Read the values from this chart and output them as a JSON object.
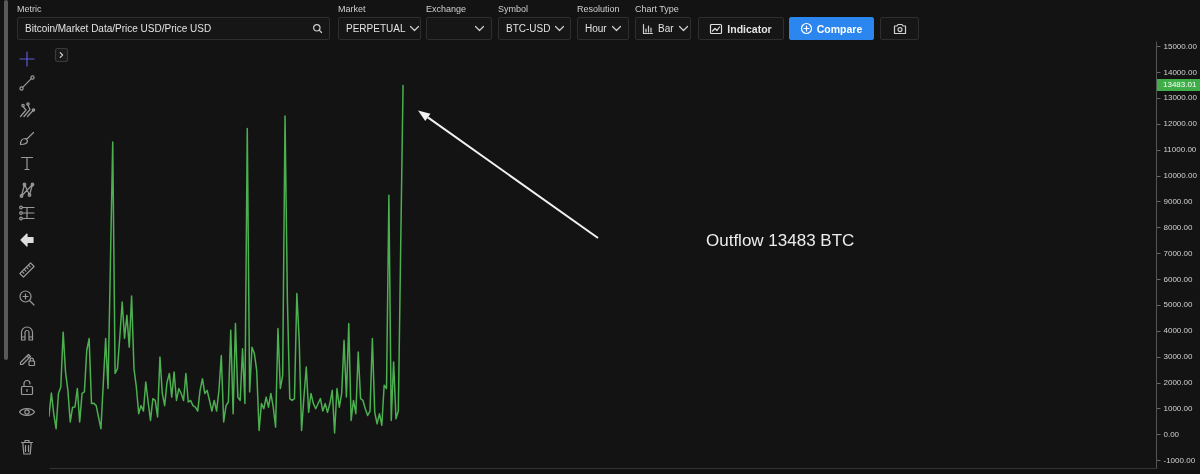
{
  "chart_data": {
    "type": "line",
    "color": "#4caf50",
    "tick_labels": "y",
    "ylim": [
      -1300,
      15200
    ],
    "yticks": [
      {
        "value": -1000,
        "label": "-1000.00"
      },
      {
        "value": 0,
        "label": "0.00"
      },
      {
        "value": 1000,
        "label": "1000.00"
      },
      {
        "value": 2000,
        "label": "2000.00"
      },
      {
        "value": 3000,
        "label": "3000.00"
      },
      {
        "value": 4000,
        "label": "4000.00"
      },
      {
        "value": 5000,
        "label": "5000.00"
      },
      {
        "value": 6000,
        "label": "6000.00"
      },
      {
        "value": 7000,
        "label": "7000.00"
      },
      {
        "value": 8000,
        "label": "8000.00"
      },
      {
        "value": 9000,
        "label": "9000.00"
      },
      {
        "value": 10000,
        "label": "10000.00"
      },
      {
        "value": 11000,
        "label": "11000.00"
      },
      {
        "value": 12000,
        "label": "12000.00"
      },
      {
        "value": 13000,
        "label": "13000.00"
      },
      {
        "value": 14000,
        "label": "14000.00"
      },
      {
        "value": 15000,
        "label": "15000.00"
      }
    ],
    "annotations": [
      "Outflow 13483 BTC",
      "13483.01",
      "Metric",
      "Bitcoin/Market Data/Price USD/Price USD",
      "Market",
      "PERPETUAL",
      "Exchange",
      "Symbol",
      "BTC-USD",
      "Resolution",
      "Hour",
      "Chart Type",
      "Bar",
      "Indicator",
      "Compare"
    ],
    "categories": [
      null,
      null,
      null,
      null,
      null,
      null,
      null,
      null,
      null,
      null,
      null,
      null,
      null,
      null,
      null,
      null,
      null,
      null,
      null,
      null,
      null,
      null,
      null,
      null,
      null,
      null,
      null,
      null,
      null,
      null,
      null,
      null,
      null,
      null,
      null,
      null,
      null,
      null,
      null,
      null,
      null,
      null,
      null,
      null,
      null,
      null,
      null,
      null,
      null,
      null,
      null,
      null,
      null,
      null,
      null,
      null,
      null,
      null,
      null,
      null,
      null,
      null,
      null,
      null,
      null,
      null,
      null,
      null,
      null,
      null,
      null,
      null,
      null,
      null,
      null,
      null,
      null,
      null,
      null,
      null,
      null,
      null,
      null,
      null,
      null,
      null,
      null,
      null,
      null,
      null,
      null,
      null,
      null,
      null,
      null,
      null,
      null,
      null,
      null,
      null,
      null,
      null,
      null,
      null,
      null,
      null,
      null,
      null,
      null,
      null,
      null,
      null,
      null,
      null,
      null,
      null,
      null,
      null,
      null,
      null,
      null,
      null,
      null,
      null,
      null,
      null,
      null,
      null,
      null,
      null,
      null,
      null,
      null,
      null,
      null,
      null,
      null,
      null,
      null,
      null,
      null,
      null,
      null,
      null,
      null,
      null,
      null,
      null,
      null,
      null,
      null,
      null,
      null,
      null,
      null,
      null,
      null,
      null,
      null,
      null,
      null,
      null,
      null,
      null,
      null,
      null,
      null,
      null,
      null,
      null,
      null,
      null,
      null,
      null,
      null,
      null,
      null,
      null,
      null,
      null,
      null,
      null,
      null,
      null,
      null,
      null,
      null,
      null,
      null,
      null,
      null,
      null,
      null,
      null,
      null,
      null,
      null,
      null,
      null,
      null,
      null,
      null,
      null,
      null,
      null,
      null,
      null,
      null,
      null,
      null,
      null,
      null,
      null,
      null,
      null,
      null,
      null,
      null,
      null,
      null,
      null,
      null,
      null,
      null,
      null,
      null,
      null,
      null,
      null,
      null,
      null,
      null,
      null,
      null,
      null,
      null,
      null,
      null,
      null,
      null,
      null,
      null,
      null,
      null,
      null,
      null,
      null,
      null,
      null,
      null,
      null,
      null,
      null,
      null,
      null,
      null,
      null,
      null,
      null,
      null,
      null,
      null,
      null,
      null,
      null,
      null,
      null,
      null,
      null,
      null,
      null,
      null,
      null,
      null,
      null,
      null,
      null,
      null,
      null,
      null,
      null,
      null,
      null,
      null,
      null,
      null,
      null,
      null,
      null,
      null,
      null,
      null,
      null,
      null,
      null,
      null,
      null,
      null,
      null,
      null,
      null,
      null,
      null,
      null,
      null,
      null,
      null,
      null,
      null,
      null,
      null,
      null,
      null,
      null,
      null,
      null,
      null,
      null,
      null,
      null,
      null,
      null,
      null,
      null,
      null,
      null,
      null,
      null,
      null,
      null,
      null,
      null,
      null,
      null,
      null,
      null,
      null,
      null,
      null,
      null,
      null,
      null,
      null,
      null,
      null,
      null,
      null,
      null,
      null,
      null,
      null,
      null,
      null,
      null,
      null,
      null,
      null,
      null,
      null,
      null,
      null,
      null,
      null,
      null,
      null,
      null,
      null,
      null,
      null,
      null,
      null,
      null,
      null,
      null,
      null,
      null,
      null,
      null,
      null,
      null,
      null,
      null,
      null,
      null,
      null,
      null,
      null,
      null,
      null,
      null,
      null,
      null,
      null,
      null,
      null,
      null,
      null,
      null,
      null,
      null,
      null,
      null,
      null,
      null,
      null,
      null,
      null,
      null,
      null,
      null,
      null,
      null,
      null,
      null,
      null,
      null,
      null,
      null,
      null,
      null,
      null,
      null,
      null,
      null,
      null,
      null,
      null,
      null,
      null,
      null,
      null,
      null,
      null,
      null,
      null,
      null,
      null,
      null,
      null,
      null,
      null,
      null,
      null,
      null,
      null,
      null,
      null,
      null,
      null,
      null,
      null,
      null,
      null,
      null,
      null,
      null,
      null,
      null,
      null,
      null,
      null,
      null,
      null,
      null,
      null,
      null,
      null,
      null,
      null,
      null
    ],
    "values": [
      700,
      1600,
      800,
      220,
      1580,
      1830,
      3950,
      2410,
      1700,
      480,
      1050,
      1060,
      1770,
      480,
      1580,
      1640,
      3250,
      3700,
      1190,
      1200,
      1110,
      660,
      220,
      1960,
      3700,
      1770,
      6520,
      11300,
      2350,
      2540,
      3760,
      5110,
      3710,
      4600,
      3370,
      5350,
      2540,
      1830,
      800,
      1110,
      900,
      2020,
      1250,
      540,
      1380,
      1310,
      670,
      2990,
      1580,
      1110,
      2020,
      2350,
      1440,
      2410,
      1310,
      1770,
      1580,
      1310,
      2350,
      1250,
      1310,
      1110,
      1050,
      900,
      1700,
      2150,
      1580,
      1700,
      1310,
      900,
      1310,
      900,
      1700,
      3050,
      480,
      1110,
      1250,
      4020,
      800,
      4280,
      1440,
      1310,
      3310,
      1190,
      11820,
      1640,
      3370,
      3120,
      2470,
      150,
      1190,
      990,
      1440,
      1050,
      1580,
      1050,
      280,
      4090,
      1770,
      2280,
      12300,
      5180,
      1380,
      1310,
      1380,
      5440,
      3640,
      150,
      1440,
      2600,
      850,
      1580,
      1190,
      990,
      1190,
      1380,
      900,
      1190,
      850,
      1190,
      1700,
      50,
      1770,
      1050,
      1580,
      3640,
      1440,
      4280,
      540,
      1310,
      800,
      3180,
      1380,
      1310,
      990,
      730,
      900,
      3700,
      850,
      410,
      800,
      350,
      1900,
      1770,
      9240,
      540,
      2800,
      600,
      900,
      7240,
      13483,
      null,
      null,
      null,
      null,
      null,
      null,
      null,
      null,
      null,
      null,
      null,
      null,
      null,
      null,
      null,
      null,
      null,
      null,
      null,
      null,
      null,
      null,
      null,
      null,
      null,
      null,
      null,
      null,
      null,
      null,
      null,
      null,
      null,
      null,
      null,
      null,
      null,
      null,
      null,
      null,
      null,
      null,
      null,
      null,
      null,
      null,
      null,
      null,
      null,
      null,
      null,
      null,
      null,
      null,
      null,
      null,
      null,
      null,
      null,
      null,
      null,
      null,
      null,
      null,
      null,
      null,
      null,
      null,
      null,
      null,
      null,
      null,
      null,
      null,
      null,
      null,
      null,
      null,
      null,
      null,
      null,
      null,
      null,
      null,
      null,
      null,
      null,
      null,
      null,
      null,
      null,
      null,
      null,
      null,
      null,
      null,
      null,
      null,
      null,
      null,
      null,
      null,
      null,
      null,
      null,
      null,
      null,
      null,
      null,
      null,
      null,
      null,
      null,
      null,
      null,
      null,
      null,
      null,
      null,
      null,
      null,
      null,
      null,
      null,
      null,
      null,
      null,
      null,
      null,
      null,
      null,
      null,
      null,
      null,
      null,
      null,
      null,
      null,
      null,
      null,
      null,
      null,
      null,
      null,
      null,
      null,
      null,
      null,
      null,
      null,
      null,
      null,
      null,
      null,
      null,
      null,
      null,
      null,
      null,
      null,
      null,
      null,
      null,
      null,
      null,
      null,
      null,
      null,
      null,
      null,
      null,
      null,
      null,
      null,
      null,
      null,
      null,
      null,
      null,
      null,
      null,
      null,
      null,
      null,
      null,
      null,
      null,
      null,
      null,
      null,
      null,
      null,
      null,
      null,
      null,
      null,
      null,
      null,
      null,
      null,
      null,
      null,
      null,
      null,
      null,
      null,
      null,
      null,
      null,
      null,
      null,
      null,
      null,
      null,
      null,
      null,
      null,
      null,
      null,
      null,
      null,
      null,
      null,
      null,
      null,
      null,
      null,
      null,
      null,
      null,
      null,
      null,
      null,
      null,
      null,
      null,
      null,
      null,
      null,
      null,
      null,
      null,
      null,
      null,
      null,
      null,
      null,
      null,
      null,
      null,
      null,
      null,
      null,
      null,
      null,
      null,
      null,
      null,
      null,
      null,
      null,
      null,
      null,
      null,
      null,
      null,
      null,
      null,
      null,
      null,
      null,
      null,
      null,
      null,
      null,
      null,
      null,
      null,
      null,
      null,
      null,
      null,
      null,
      null,
      null,
      null,
      null,
      null,
      null,
      null,
      null,
      null,
      null,
      null,
      null,
      null,
      null,
      null,
      null,
      null,
      null,
      null,
      null,
      null,
      null,
      null,
      null,
      null,
      null,
      null,
      null,
      null,
      null,
      null,
      null,
      null,
      null,
      null,
      null
    ]
  }
}
